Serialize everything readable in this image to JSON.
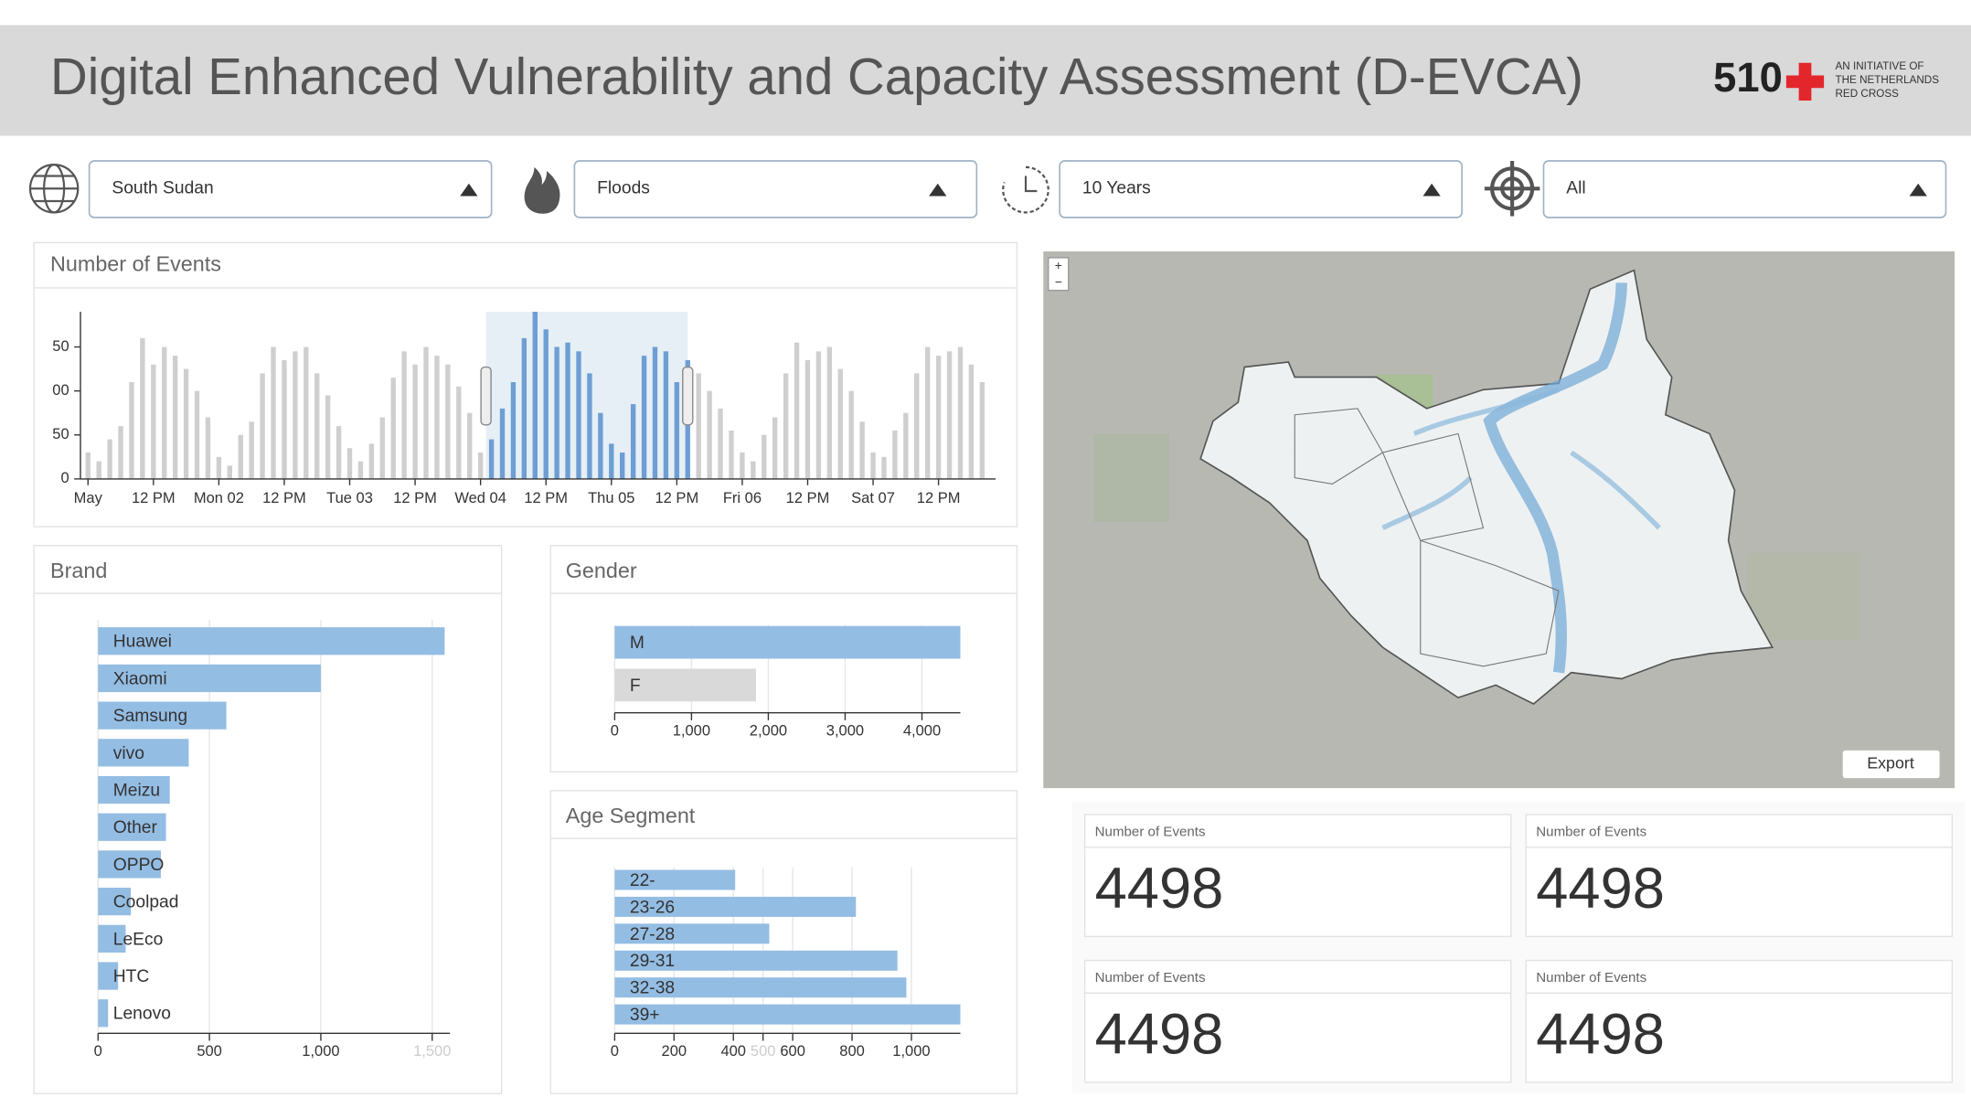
{
  "header": {
    "title": "Digital Enhanced Vulnerability and Capacity Assessment (D-EVCA)",
    "logo": "510",
    "tagline": [
      "AN INITIATIVE OF",
      "THE NETHERLANDS",
      "RED CROSS"
    ]
  },
  "filters": [
    "South Sudan",
    "Floods",
    "10 Years",
    "All"
  ],
  "chart_data": [
    {
      "type": "bar",
      "title": "Number of Events",
      "x": [
        0,
        2,
        4,
        6,
        8,
        10,
        12,
        14,
        16,
        18,
        20,
        22,
        24,
        26,
        28,
        30,
        32,
        34,
        36,
        38,
        40,
        42,
        44,
        46,
        48,
        50,
        52,
        54,
        56,
        58,
        60,
        62,
        64,
        66,
        68,
        70,
        72,
        74,
        76,
        78,
        80,
        82,
        84,
        86,
        88,
        90,
        92,
        94,
        96,
        98,
        100,
        102,
        104,
        106,
        108,
        110,
        112,
        114,
        116,
        118,
        120,
        122,
        124,
        126,
        128,
        130,
        132,
        134,
        136,
        138,
        140,
        142,
        144,
        146,
        148,
        150,
        152,
        154,
        156,
        158,
        160,
        162,
        164
      ],
      "values": [
        30,
        20,
        45,
        60,
        110,
        160,
        130,
        150,
        140,
        125,
        100,
        70,
        25,
        15,
        50,
        65,
        120,
        150,
        135,
        145,
        150,
        120,
        95,
        60,
        35,
        20,
        40,
        70,
        115,
        145,
        130,
        150,
        140,
        130,
        105,
        75,
        30,
        45,
        80,
        110,
        160,
        190,
        170,
        150,
        155,
        145,
        120,
        75,
        40,
        30,
        85,
        140,
        150,
        145,
        110,
        135,
        120,
        100,
        80,
        55,
        30,
        20,
        50,
        70,
        120,
        155,
        135,
        145,
        150,
        125,
        100,
        65,
        30,
        25,
        55,
        75,
        120,
        150,
        140,
        145,
        150,
        130,
        110
      ],
      "color": "#cfcfcf",
      "selected_color": "#6e9ed3",
      "selection": [
        73,
        110
      ],
      "xlim": [
        0,
        166
      ],
      "xticks": [
        {
          "value": 0,
          "label": "May"
        },
        {
          "value": 12,
          "label": "12 PM"
        },
        {
          "value": 24,
          "label": "Mon 02"
        },
        {
          "value": 36,
          "label": "12 PM"
        },
        {
          "value": 48,
          "label": "Tue 03"
        },
        {
          "value": 60,
          "label": "12 PM"
        },
        {
          "value": 72,
          "label": "Wed 04"
        },
        {
          "value": 84,
          "label": "12 PM"
        },
        {
          "value": 96,
          "label": "Thu 05"
        },
        {
          "value": 108,
          "label": "12 PM"
        },
        {
          "value": 120,
          "label": "Fri 06"
        },
        {
          "value": 132,
          "label": "12 PM"
        },
        {
          "value": 144,
          "label": "Sat 07"
        },
        {
          "value": 156,
          "label": "12 PM"
        }
      ],
      "ylim": [
        0,
        190
      ],
      "yticks": [
        0,
        50,
        {
          "value": 100,
          "label": "00"
        },
        {
          "value": 150,
          "label": "50"
        }
      ]
    },
    {
      "type": "bar",
      "orientation": "horizontal",
      "title": "Brand",
      "categories": [
        "Huawei",
        "Xiaomi",
        "Samsung",
        "vivo",
        "Meizu",
        "Other",
        "OPPO",
        "Coolpad",
        "LeEco",
        "HTC",
        "Lenovo"
      ],
      "values": [
        1556,
        1000,
        576,
        407,
        322,
        305,
        282,
        147,
        124,
        90,
        45
      ],
      "color": "#94bde3",
      "xlim": [
        0,
        1580
      ],
      "xticks": [
        0,
        500,
        {
          "value": 1000,
          "label": "1,000"
        },
        {
          "value": 1500,
          "label": "1,500"
        }
      ],
      "muted_tick": 1500,
      "grid": true
    },
    {
      "type": "bar",
      "orientation": "horizontal",
      "title": "Gender",
      "categories": [
        "M",
        "F"
      ],
      "values": [
        4500,
        1840
      ],
      "colors": [
        "#94bde3",
        "#d9d9d9"
      ],
      "xlim": [
        0,
        4500
      ],
      "xticks": [
        0,
        {
          "value": 1000,
          "label": "1,000"
        },
        {
          "value": 2000,
          "label": "2,000"
        },
        {
          "value": 3000,
          "label": "3,000"
        },
        {
          "value": 4000,
          "label": "4,000"
        }
      ],
      "grid": true
    },
    {
      "type": "bar",
      "orientation": "horizontal",
      "title": "Age Segment",
      "categories": [
        "22-",
        "23-26",
        "27-28",
        "29-31",
        "32-38",
        "39+"
      ],
      "values": [
        406,
        813,
        521,
        953,
        983,
        1165
      ],
      "color": "#94bde3",
      "xlim": [
        0,
        1165
      ],
      "xticks": [
        0,
        200,
        400,
        500,
        600,
        800,
        {
          "value": 1000,
          "label": "1,000"
        }
      ],
      "muted_tick": 500,
      "grid": true
    }
  ],
  "map": {
    "zoom": [
      "+",
      "−"
    ],
    "export": "Export"
  },
  "kpis": [
    {
      "label": "Number of Events",
      "value": 4498
    },
    {
      "label": "Number of Events",
      "value": 4498
    },
    {
      "label": "Number of Events",
      "value": 4498
    },
    {
      "label": "Number of Events",
      "value": 4498
    }
  ]
}
